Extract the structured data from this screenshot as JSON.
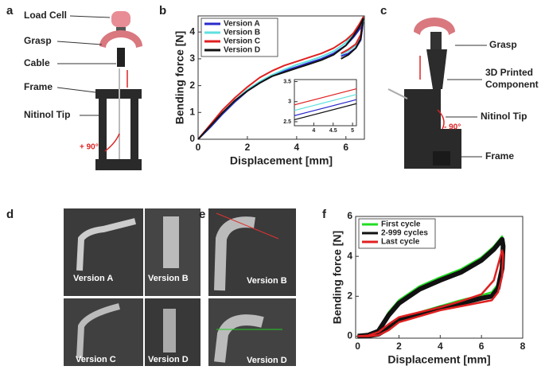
{
  "panels": {
    "a": {
      "letter": "a",
      "labels": [
        "Load Cell",
        "Grasp",
        "Cable",
        "Frame",
        "Nitinol Tip"
      ],
      "angle": "+ 90°"
    },
    "b": {
      "letter": "b"
    },
    "c": {
      "letter": "c",
      "labels": [
        "Grasp",
        "3D Printed",
        "Component",
        "Nitinol Tip",
        "Frame"
      ],
      "angle": "- 90°"
    },
    "d": {
      "letter": "d",
      "labels": [
        "Version A",
        "Version B",
        "Version C",
        "Version D"
      ]
    },
    "e": {
      "letter": "e",
      "labels": [
        "Version B",
        "Version D"
      ]
    },
    "f": {
      "letter": "f"
    }
  },
  "chart_data": [
    {
      "type": "line",
      "x_label": "Displacement [mm]",
      "y_label": "Bending force [N]",
      "legend": "upper left",
      "x": [
        0,
        0.5,
        1,
        1.5,
        2,
        2.5,
        3,
        3.5,
        4,
        4.5,
        5,
        5.5,
        6,
        6.3,
        6.55,
        6.7,
        6.6,
        6.4,
        6.1,
        5.8
      ],
      "series": [
        {
          "name": "Version A",
          "color": "#2a2acc",
          "values": [
            0,
            0.45,
            0.95,
            1.4,
            1.8,
            2.1,
            2.35,
            2.55,
            2.7,
            2.85,
            3.0,
            3.2,
            3.5,
            3.8,
            4.1,
            4.35,
            3.7,
            3.4,
            3.2,
            3.1
          ]
        },
        {
          "name": "Version B",
          "color": "#5fe0e0",
          "values": [
            0,
            0.5,
            1.0,
            1.45,
            1.85,
            2.15,
            2.4,
            2.6,
            2.78,
            2.92,
            3.08,
            3.28,
            3.6,
            3.9,
            4.2,
            4.45,
            3.8,
            3.5,
            3.3,
            3.15
          ]
        },
        {
          "name": "Version C",
          "color": "#e02020",
          "values": [
            0,
            0.55,
            1.1,
            1.55,
            1.95,
            2.3,
            2.55,
            2.75,
            2.9,
            3.05,
            3.2,
            3.4,
            3.7,
            3.95,
            4.3,
            4.55,
            3.9,
            3.55,
            3.35,
            3.2
          ]
        },
        {
          "name": "Version D",
          "color": "#111111",
          "values": [
            0,
            0.5,
            1.0,
            1.45,
            1.8,
            2.1,
            2.35,
            2.5,
            2.65,
            2.8,
            2.95,
            3.15,
            3.5,
            3.85,
            4.2,
            4.5,
            3.75,
            3.4,
            3.15,
            3.0
          ]
        }
      ],
      "xlim": [
        0,
        6.75
      ],
      "ylim": [
        0,
        4.6
      ],
      "xticks": [
        0,
        2,
        4,
        6
      ],
      "yticks": [
        0,
        1,
        2,
        3,
        4
      ]
    },
    {
      "type": "line",
      "x": [
        3.5,
        5.1
      ],
      "series": [
        {
          "color": "#2a2acc",
          "values": [
            2.65,
            3.05
          ]
        },
        {
          "color": "#5fe0e0",
          "values": [
            2.78,
            3.18
          ]
        },
        {
          "color": "#e02020",
          "values": [
            2.92,
            3.32
          ]
        },
        {
          "color": "#111111",
          "values": [
            2.55,
            2.95
          ]
        }
      ],
      "xlim": [
        3.5,
        5.1
      ],
      "ylim": [
        2.4,
        3.55
      ],
      "xticks": [
        4,
        4.5,
        5
      ],
      "yticks": [
        2.5,
        3,
        3.5
      ]
    },
    {
      "type": "line",
      "x_label": "Displacement [mm]",
      "y_label": "Bending force [N]",
      "legend": "upper left",
      "x": [
        0,
        0.5,
        1,
        1.5,
        2,
        3,
        4,
        5,
        6,
        6.6,
        7,
        7.05,
        7,
        6.8,
        6.5,
        6,
        5,
        4,
        3,
        2,
        1.5,
        1,
        0.5,
        0
      ],
      "series": [
        {
          "name": "First cycle",
          "color": "#22dd22",
          "values": [
            0,
            0.05,
            0.3,
            1.2,
            1.8,
            2.5,
            2.95,
            3.35,
            3.95,
            4.5,
            5.0,
            4.7,
            3.6,
            2.6,
            2.2,
            2.05,
            1.8,
            1.5,
            1.2,
            0.9,
            0.5,
            0.15,
            0.02,
            0
          ]
        },
        {
          "name": "2-999 cycles",
          "color": "#111111",
          "values": [
            0,
            0.05,
            0.25,
            1.05,
            1.65,
            2.35,
            2.8,
            3.2,
            3.8,
            4.35,
            4.85,
            4.5,
            3.4,
            2.4,
            2.0,
            1.9,
            1.65,
            1.4,
            1.1,
            0.8,
            0.4,
            0.1,
            0.02,
            0
          ]
        },
        {
          "name": "Last cycle",
          "color": "#e02020",
          "values": [
            0,
            0.03,
            0.2,
            0.6,
            0.95,
            1.2,
            1.45,
            1.75,
            2.1,
            2.8,
            4.3,
            4.1,
            3.0,
            2.2,
            1.8,
            1.7,
            1.5,
            1.3,
            1.0,
            0.7,
            0.3,
            0.05,
            0,
            0
          ]
        }
      ],
      "xlim": [
        -0.1,
        8
      ],
      "ylim": [
        -0.1,
        6
      ],
      "xticks": [
        0,
        2,
        4,
        6,
        8
      ],
      "yticks": [
        0,
        2,
        4,
        6
      ]
    }
  ]
}
